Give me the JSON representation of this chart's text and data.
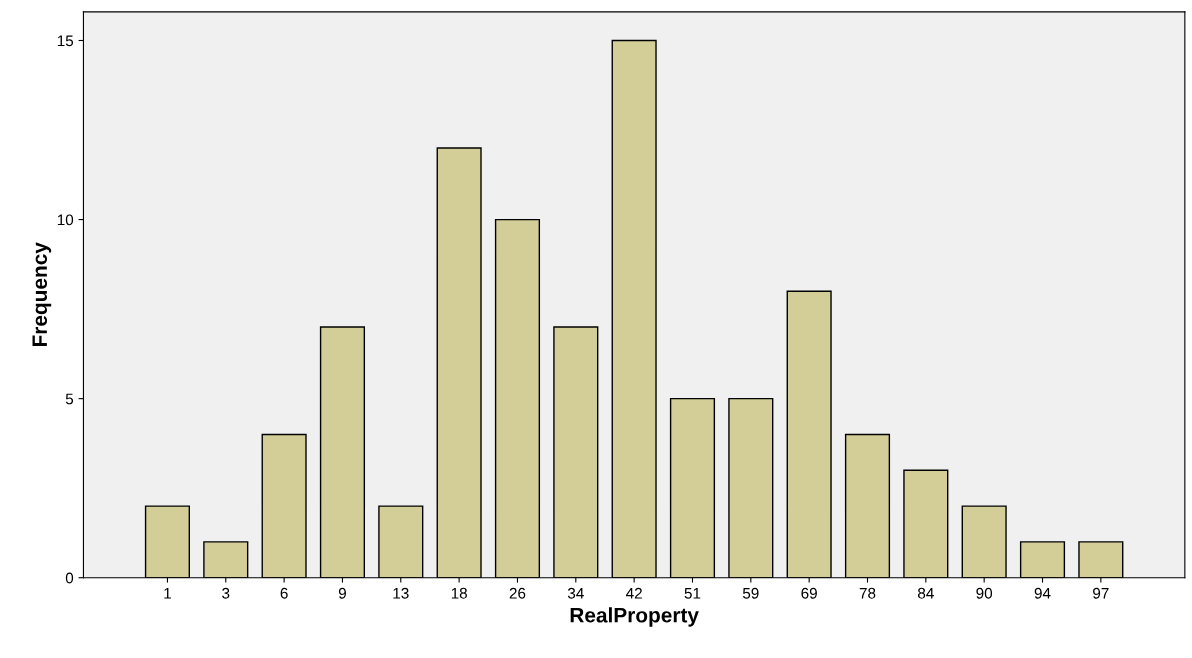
{
  "chart_data": {
    "type": "bar",
    "xlabel": "RealProperty",
    "ylabel": "Frequency",
    "categories": [
      "1",
      "3",
      "6",
      "9",
      "13",
      "18",
      "26",
      "34",
      "42",
      "51",
      "59",
      "69",
      "78",
      "84",
      "90",
      "94",
      "97"
    ],
    "values": [
      2,
      1,
      4,
      7,
      2,
      12,
      10,
      7,
      15,
      5,
      5,
      8,
      4,
      3,
      2,
      1,
      1
    ],
    "color": "#d3ce97",
    "ylim": [
      0,
      15.8
    ],
    "yticks": [
      0,
      5,
      10,
      15
    ],
    "grid": false,
    "legend": false
  }
}
